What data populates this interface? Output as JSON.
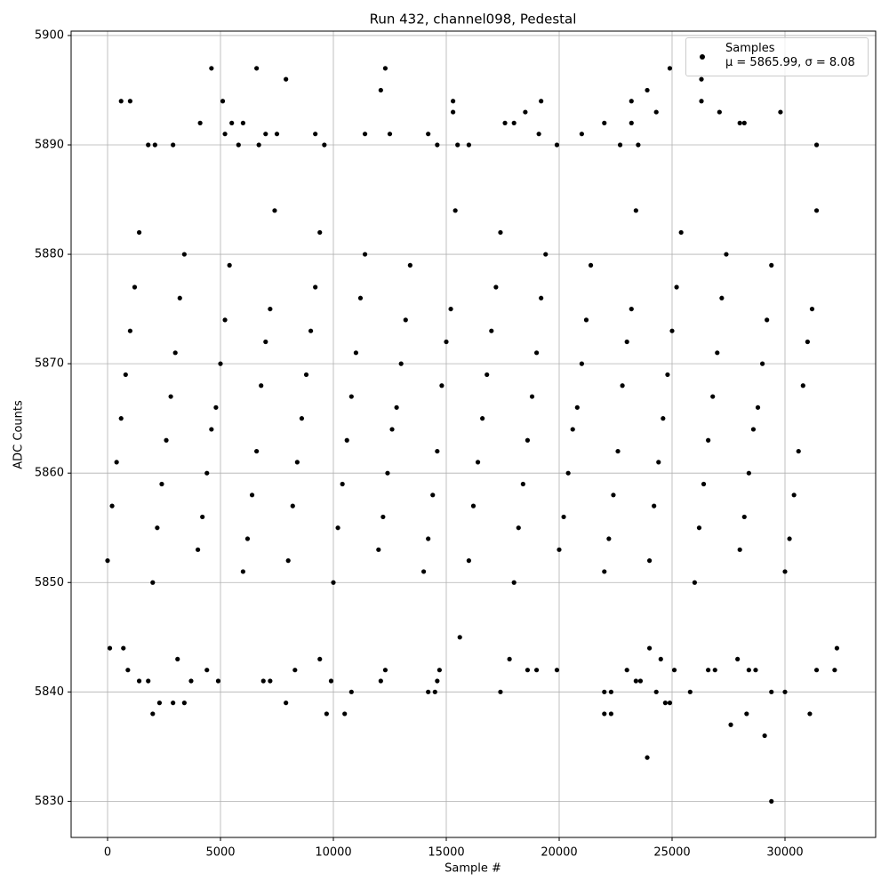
{
  "chart_data": {
    "type": "scatter",
    "title": "Run 432, channel098, Pedestal",
    "x_label": "Sample #",
    "y_label": "ADC Counts",
    "xlim": [
      -1614,
      34016
    ],
    "ylim": [
      5826.7,
      5900.4
    ],
    "xticks": [
      0,
      5000,
      10000,
      15000,
      20000,
      25000,
      30000
    ],
    "yticks": [
      5830,
      5840,
      5850,
      5860,
      5870,
      5880,
      5890,
      5900
    ],
    "grid": true,
    "legend_position": "upper right",
    "x": [
      0,
      200,
      400,
      600,
      800,
      1000,
      1200,
      1400,
      2000,
      2200,
      2400,
      2600,
      2800,
      3000,
      3200,
      3400,
      4000,
      4200,
      4400,
      4600,
      4800,
      5000,
      5200,
      5400,
      6000,
      6200,
      6400,
      6600,
      6800,
      7000,
      7200,
      7400,
      8000,
      8200,
      8400,
      8600,
      8800,
      9000,
      9200,
      9400,
      10000,
      10200,
      10400,
      10600,
      10800,
      11000,
      11200,
      11400,
      12000,
      12200,
      12400,
      12600,
      12800,
      13000,
      13200,
      13400,
      14000,
      14200,
      14400,
      14600,
      14800,
      15000,
      15200,
      15400,
      16000,
      16200,
      16400,
      16600,
      16800,
      17000,
      17200,
      17400,
      18000,
      18200,
      18400,
      18600,
      18800,
      19000,
      19200,
      19400,
      20000,
      20200,
      20400,
      20600,
      20800,
      21000,
      21200,
      21400,
      22000,
      22200,
      22400,
      22600,
      22800,
      23000,
      23200,
      23400,
      24000,
      24200,
      24400,
      24600,
      24800,
      25000,
      25200,
      25400,
      26000,
      26200,
      26400,
      26600,
      26800,
      27000,
      27200,
      27400,
      28000,
      28200,
      28400,
      28600,
      28800,
      29000,
      29200,
      29400,
      30000,
      30200,
      30400,
      30600,
      30800,
      31000,
      31200,
      31400,
      4600,
      6600,
      12300,
      24900,
      26300,
      7900,
      12100,
      23900,
      600,
      1000,
      5100,
      15300,
      19200,
      23200,
      26300,
      15300,
      18500,
      24300,
      27100,
      29800,
      4100,
      5500,
      6000,
      17600,
      18000,
      22000,
      23200,
      28000,
      28200,
      5200,
      7000,
      7500,
      9200,
      11400,
      12500,
      14200,
      19100,
      21000,
      1800,
      2100,
      2900,
      5800,
      6700,
      9600,
      14600,
      15500,
      16000,
      19900,
      22700,
      23500,
      31400,
      100,
      700,
      900,
      1400,
      1800,
      2000,
      2300,
      2900,
      3100,
      3400,
      3700,
      4400,
      4900,
      6900,
      7200,
      7900,
      8300,
      9400,
      9700,
      9900,
      10500,
      10800,
      12100,
      12300,
      14200,
      14500,
      14600,
      14700,
      15600,
      17400,
      17800,
      18600,
      19000,
      19900,
      22000,
      22000,
      22300,
      22300,
      23000,
      23400,
      23600,
      23900,
      24000,
      24300,
      24500,
      24700,
      24900,
      25100,
      25800,
      26600,
      26900,
      27600,
      27900,
      28300,
      28400,
      28700,
      29100,
      29400,
      29400,
      30000,
      31100,
      31400,
      32200,
      32300
    ],
    "series": [
      {
        "name": "Samples\nμ = 5865.99, σ = 8.08",
        "color": "#000000",
        "values": [
          5852,
          5857,
          5861,
          5865,
          5869,
          5873,
          5877,
          5882,
          5850,
          5855,
          5859,
          5863,
          5867,
          5871,
          5876,
          5880,
          5853,
          5856,
          5860,
          5864,
          5866,
          5870,
          5874,
          5879,
          5851,
          5854,
          5858,
          5862,
          5868,
          5872,
          5875,
          5884,
          5852,
          5857,
          5861,
          5865,
          5869,
          5873,
          5877,
          5882,
          5850,
          5855,
          5859,
          5863,
          5867,
          5871,
          5876,
          5880,
          5853,
          5856,
          5860,
          5864,
          5866,
          5870,
          5874,
          5879,
          5851,
          5854,
          5858,
          5862,
          5868,
          5872,
          5875,
          5884,
          5852,
          5857,
          5861,
          5865,
          5869,
          5873,
          5877,
          5882,
          5850,
          5855,
          5859,
          5863,
          5867,
          5871,
          5876,
          5880,
          5853,
          5856,
          5860,
          5864,
          5866,
          5870,
          5874,
          5879,
          5851,
          5854,
          5858,
          5862,
          5868,
          5872,
          5875,
          5884,
          5852,
          5857,
          5861,
          5865,
          5869,
          5873,
          5877,
          5882,
          5850,
          5855,
          5859,
          5863,
          5867,
          5871,
          5876,
          5880,
          5853,
          5856,
          5860,
          5864,
          5866,
          5870,
          5874,
          5879,
          5851,
          5854,
          5858,
          5862,
          5868,
          5872,
          5875,
          5884,
          5897,
          5897,
          5897,
          5897,
          5896,
          5896,
          5895,
          5895,
          5894,
          5894,
          5894,
          5894,
          5894,
          5894,
          5894,
          5893,
          5893,
          5893,
          5893,
          5893,
          5892,
          5892,
          5892,
          5892,
          5892,
          5892,
          5892,
          5892,
          5892,
          5891,
          5891,
          5891,
          5891,
          5891,
          5891,
          5891,
          5891,
          5891,
          5890,
          5890,
          5890,
          5890,
          5890,
          5890,
          5890,
          5890,
          5890,
          5890,
          5890,
          5890,
          5890,
          5844,
          5844,
          5842,
          5841,
          5841,
          5838,
          5839,
          5839,
          5843,
          5839,
          5841,
          5842,
          5841,
          5841,
          5841,
          5839,
          5842,
          5843,
          5838,
          5841,
          5838,
          5840,
          5841,
          5842,
          5840,
          5840,
          5841,
          5842,
          5845,
          5840,
          5843,
          5842,
          5842,
          5842,
          5838,
          5840,
          5838,
          5840,
          5842,
          5841,
          5841,
          5834,
          5844,
          5840,
          5843,
          5839,
          5839,
          5842,
          5840,
          5842,
          5842,
          5837,
          5843,
          5838,
          5842,
          5842,
          5836,
          5830,
          5840,
          5840,
          5838,
          5842,
          5842,
          5844
        ]
      }
    ]
  }
}
